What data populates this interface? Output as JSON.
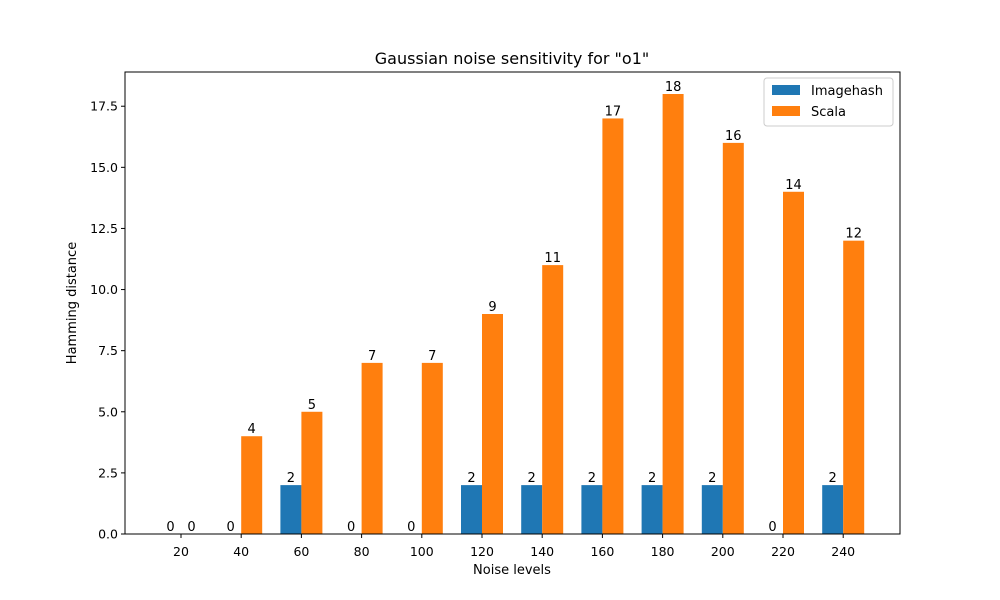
{
  "chart_data": {
    "type": "bar",
    "title": "Gaussian noise sensitivity for \"o1\"",
    "xlabel": "Noise levels",
    "ylabel": "Hamming distance",
    "categories": [
      "20",
      "40",
      "60",
      "80",
      "100",
      "120",
      "140",
      "160",
      "180",
      "200",
      "220",
      "240"
    ],
    "series": [
      {
        "name": "Imagehash",
        "color": "#1f77b4",
        "values": [
          0,
          0,
          2,
          0,
          0,
          2,
          2,
          2,
          2,
          2,
          0,
          2
        ]
      },
      {
        "name": "Scala",
        "color": "#ff7f0e",
        "values": [
          0,
          4,
          5,
          7,
          7,
          9,
          11,
          17,
          18,
          16,
          14,
          12
        ]
      }
    ],
    "data_labels": [
      [
        "0",
        "0",
        "2",
        "0",
        "0",
        "2",
        "2",
        "2",
        "2",
        "2",
        "0",
        "2"
      ],
      [
        "0",
        "4",
        "5",
        "7",
        "7",
        "9",
        "11",
        "17",
        "18",
        "16",
        "14",
        "12"
      ]
    ],
    "ylim": [
      0,
      18.9
    ],
    "yticks": [
      "0.0",
      "2.5",
      "5.0",
      "7.5",
      "10.0",
      "12.5",
      "15.0",
      "17.5"
    ],
    "legend_position": "top-right",
    "grid": false
  }
}
